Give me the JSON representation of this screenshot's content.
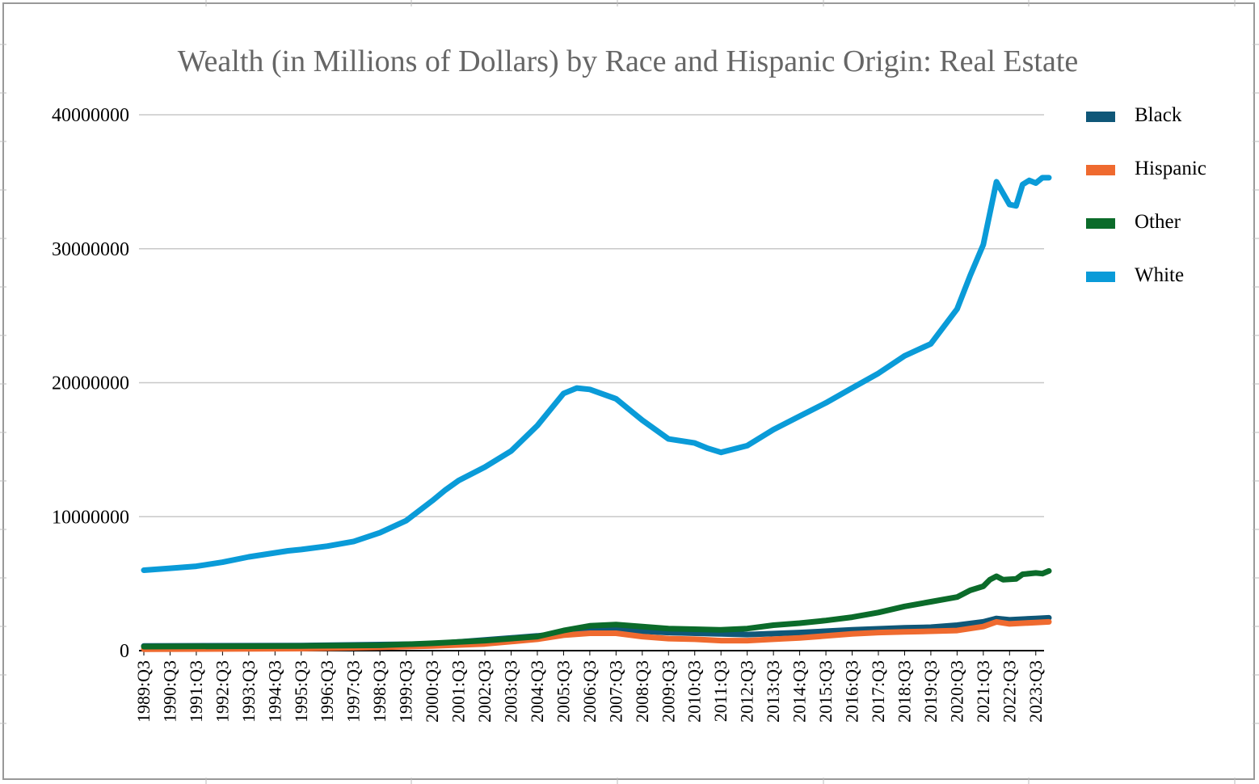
{
  "colors": {
    "Black": "#0f5778",
    "Hispanic": "#ef6a2f",
    "Other": "#0b6b2a",
    "White": "#0a9bd8",
    "grid": "#c8c8c8",
    "axis": "#000000",
    "title": "#666666"
  },
  "chart_data": {
    "type": "line",
    "title": "Wealth (in Millions of Dollars) by Race and Hispanic Origin: Real Estate",
    "xlabel": "",
    "ylabel": "",
    "ylim": [
      0,
      40000000
    ],
    "yticks": [
      "0",
      "10000000",
      "20000000",
      "30000000",
      "40000000"
    ],
    "ytick_values": [
      0,
      10000000,
      20000000,
      30000000,
      40000000
    ],
    "xtick_labels": [
      "1989:Q3",
      "1990:Q3",
      "1991:Q3",
      "1992:Q3",
      "1993:Q3",
      "1994:Q3",
      "1995:Q3",
      "1996:Q3",
      "1997:Q3",
      "1998:Q3",
      "1999:Q3",
      "2000:Q3",
      "2001:Q3",
      "2002:Q3",
      "2003:Q3",
      "2004:Q3",
      "2005:Q3",
      "2006:Q3",
      "2007:Q3",
      "2008:Q3",
      "2009:Q3",
      "2010:Q3",
      "2011:Q3",
      "2012:Q3",
      "2013:Q3",
      "2014:Q3",
      "2015:Q3",
      "2016:Q3",
      "2017:Q3",
      "2018:Q3",
      "2019:Q3",
      "2020:Q3",
      "2021:Q3",
      "2022:Q3",
      "2023:Q3"
    ],
    "grid": true,
    "legend_position": "right",
    "series": [
      {
        "name": "Black",
        "points": [
          [
            "1989:Q3",
            350000
          ],
          [
            "1995:Q3",
            380000
          ],
          [
            "2000:Q3",
            500000
          ],
          [
            "2004:Q3",
            1100000
          ],
          [
            "2006:Q3",
            1500000
          ],
          [
            "2007:Q3",
            1550000
          ],
          [
            "2009:Q3",
            1350000
          ],
          [
            "2011:Q3",
            1250000
          ],
          [
            "2012:Q3",
            1200000
          ],
          [
            "2014:Q3",
            1350000
          ],
          [
            "2016:Q3",
            1550000
          ],
          [
            "2018:Q3",
            1700000
          ],
          [
            "2019:Q3",
            1750000
          ],
          [
            "2020:Q3",
            1900000
          ],
          [
            "2021:Q3",
            2150000
          ],
          [
            "2022:Q1",
            2400000
          ],
          [
            "2022:Q3",
            2300000
          ],
          [
            "2023:Q3",
            2400000
          ],
          [
            "2024:Q1",
            2450000
          ]
        ]
      },
      {
        "name": "Hispanic",
        "points": [
          [
            "1989:Q3",
            100000
          ],
          [
            "1995:Q3",
            150000
          ],
          [
            "1998:Q3",
            250000
          ],
          [
            "2000:Q3",
            350000
          ],
          [
            "2002:Q3",
            500000
          ],
          [
            "2004:Q3",
            850000
          ],
          [
            "2005:Q3",
            1150000
          ],
          [
            "2006:Q3",
            1300000
          ],
          [
            "2007:Q3",
            1300000
          ],
          [
            "2008:Q3",
            1050000
          ],
          [
            "2009:Q3",
            900000
          ],
          [
            "2010:Q3",
            850000
          ],
          [
            "2011:Q3",
            750000
          ],
          [
            "2012:Q3",
            750000
          ],
          [
            "2013:Q3",
            850000
          ],
          [
            "2014:Q3",
            950000
          ],
          [
            "2015:Q3",
            1100000
          ],
          [
            "2016:Q3",
            1250000
          ],
          [
            "2017:Q3",
            1350000
          ],
          [
            "2018:Q3",
            1400000
          ],
          [
            "2019:Q3",
            1450000
          ],
          [
            "2020:Q3",
            1500000
          ],
          [
            "2021:Q3",
            1800000
          ],
          [
            "2022:Q1",
            2150000
          ],
          [
            "2022:Q3",
            2000000
          ],
          [
            "2023:Q3",
            2100000
          ],
          [
            "2024:Q1",
            2150000
          ]
        ]
      },
      {
        "name": "Other",
        "points": [
          [
            "1989:Q3",
            300000
          ],
          [
            "1995:Q3",
            350000
          ],
          [
            "1998:Q3",
            400000
          ],
          [
            "2000:Q3",
            550000
          ],
          [
            "2002:Q3",
            750000
          ],
          [
            "2004:Q3",
            1050000
          ],
          [
            "2005:Q3",
            1500000
          ],
          [
            "2006:Q3",
            1850000
          ],
          [
            "2007:Q3",
            1950000
          ],
          [
            "2008:Q3",
            1800000
          ],
          [
            "2009:Q3",
            1650000
          ],
          [
            "2010:Q3",
            1600000
          ],
          [
            "2011:Q3",
            1550000
          ],
          [
            "2012:Q3",
            1650000
          ],
          [
            "2013:Q3",
            1900000
          ],
          [
            "2014:Q3",
            2050000
          ],
          [
            "2015:Q3",
            2250000
          ],
          [
            "2016:Q3",
            2500000
          ],
          [
            "2017:Q3",
            2850000
          ],
          [
            "2018:Q3",
            3300000
          ],
          [
            "2019:Q3",
            3650000
          ],
          [
            "2020:Q3",
            4000000
          ],
          [
            "2021:Q1",
            4500000
          ],
          [
            "2021:Q3",
            4800000
          ],
          [
            "2021:Q4",
            5300000
          ],
          [
            "2022:Q1",
            5550000
          ],
          [
            "2022:Q2",
            5300000
          ],
          [
            "2022:Q4",
            5350000
          ],
          [
            "2023:Q1",
            5700000
          ],
          [
            "2023:Q3",
            5800000
          ],
          [
            "2023:Q4",
            5750000
          ],
          [
            "2024:Q1",
            5950000
          ]
        ]
      },
      {
        "name": "White",
        "points": [
          [
            "1989:Q3",
            6000000
          ],
          [
            "1990:Q3",
            6150000
          ],
          [
            "1991:Q3",
            6300000
          ],
          [
            "1992:Q3",
            6600000
          ],
          [
            "1993:Q3",
            7000000
          ],
          [
            "1994:Q3",
            7300000
          ],
          [
            "1995:Q1",
            7450000
          ],
          [
            "1995:Q3",
            7550000
          ],
          [
            "1996:Q3",
            7800000
          ],
          [
            "1997:Q3",
            8150000
          ],
          [
            "1998:Q3",
            8800000
          ],
          [
            "1999:Q3",
            9700000
          ],
          [
            "2000:Q3",
            11200000
          ],
          [
            "2001:Q1",
            12000000
          ],
          [
            "2001:Q3",
            12700000
          ],
          [
            "2002:Q3",
            13700000
          ],
          [
            "2003:Q3",
            14900000
          ],
          [
            "2004:Q3",
            16800000
          ],
          [
            "2005:Q3",
            19200000
          ],
          [
            "2006:Q1",
            19600000
          ],
          [
            "2006:Q3",
            19500000
          ],
          [
            "2007:Q3",
            18800000
          ],
          [
            "2008:Q3",
            17200000
          ],
          [
            "2009:Q3",
            15800000
          ],
          [
            "2010:Q3",
            15500000
          ],
          [
            "2011:Q1",
            15100000
          ],
          [
            "2011:Q3",
            14800000
          ],
          [
            "2012:Q3",
            15300000
          ],
          [
            "2013:Q3",
            16500000
          ],
          [
            "2014:Q3",
            17500000
          ],
          [
            "2015:Q3",
            18500000
          ],
          [
            "2016:Q3",
            19600000
          ],
          [
            "2017:Q3",
            20700000
          ],
          [
            "2018:Q3",
            22000000
          ],
          [
            "2019:Q3",
            22900000
          ],
          [
            "2020:Q3",
            25500000
          ],
          [
            "2021:Q1",
            28000000
          ],
          [
            "2021:Q3",
            30300000
          ],
          [
            "2022:Q1",
            35000000
          ],
          [
            "2022:Q3",
            33300000
          ],
          [
            "2022:Q4",
            33200000
          ],
          [
            "2023:Q1",
            34800000
          ],
          [
            "2023:Q2",
            35100000
          ],
          [
            "2023:Q3",
            34900000
          ],
          [
            "2023:Q4",
            35300000
          ],
          [
            "2024:Q1",
            35300000
          ]
        ]
      }
    ]
  }
}
